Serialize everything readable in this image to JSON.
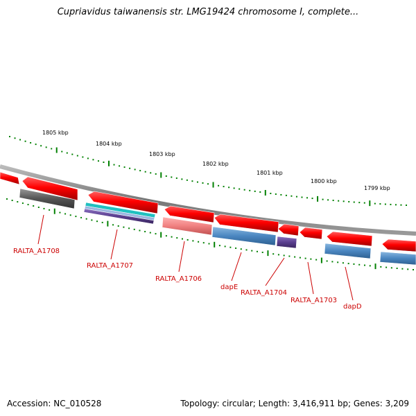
{
  "title": "Cupriavidus taiwanensis str. LMG19424 chromosome I, complete...",
  "footer": {
    "accession": "Accession: NC_010528",
    "summary": "Topology: circular; Length: 3,416,911 bp; Genes: 3,209"
  },
  "scale_labels": [
    "1805 kbp",
    "1804 kbp",
    "1803 kbp",
    "1802 kbp",
    "1801 kbp",
    "1800 kbp",
    "1799 kbp"
  ],
  "gene_labels": [
    "RALTA_A1708",
    "RALTA_A1707",
    "RALTA_A1706",
    "dapE",
    "RALTA_A1704",
    "RALTA_A1703",
    "dapD"
  ],
  "colors": {
    "gene": "#ff0000",
    "label": "#cc0000",
    "tick": "#008000",
    "backbone": "#888888",
    "cds_gray": "#555555",
    "cds_blue": "#4a86c0",
    "cds_cyan": "#20c0c0",
    "cds_purple": "#5a3f8f",
    "cds_pink": "#f08080"
  }
}
